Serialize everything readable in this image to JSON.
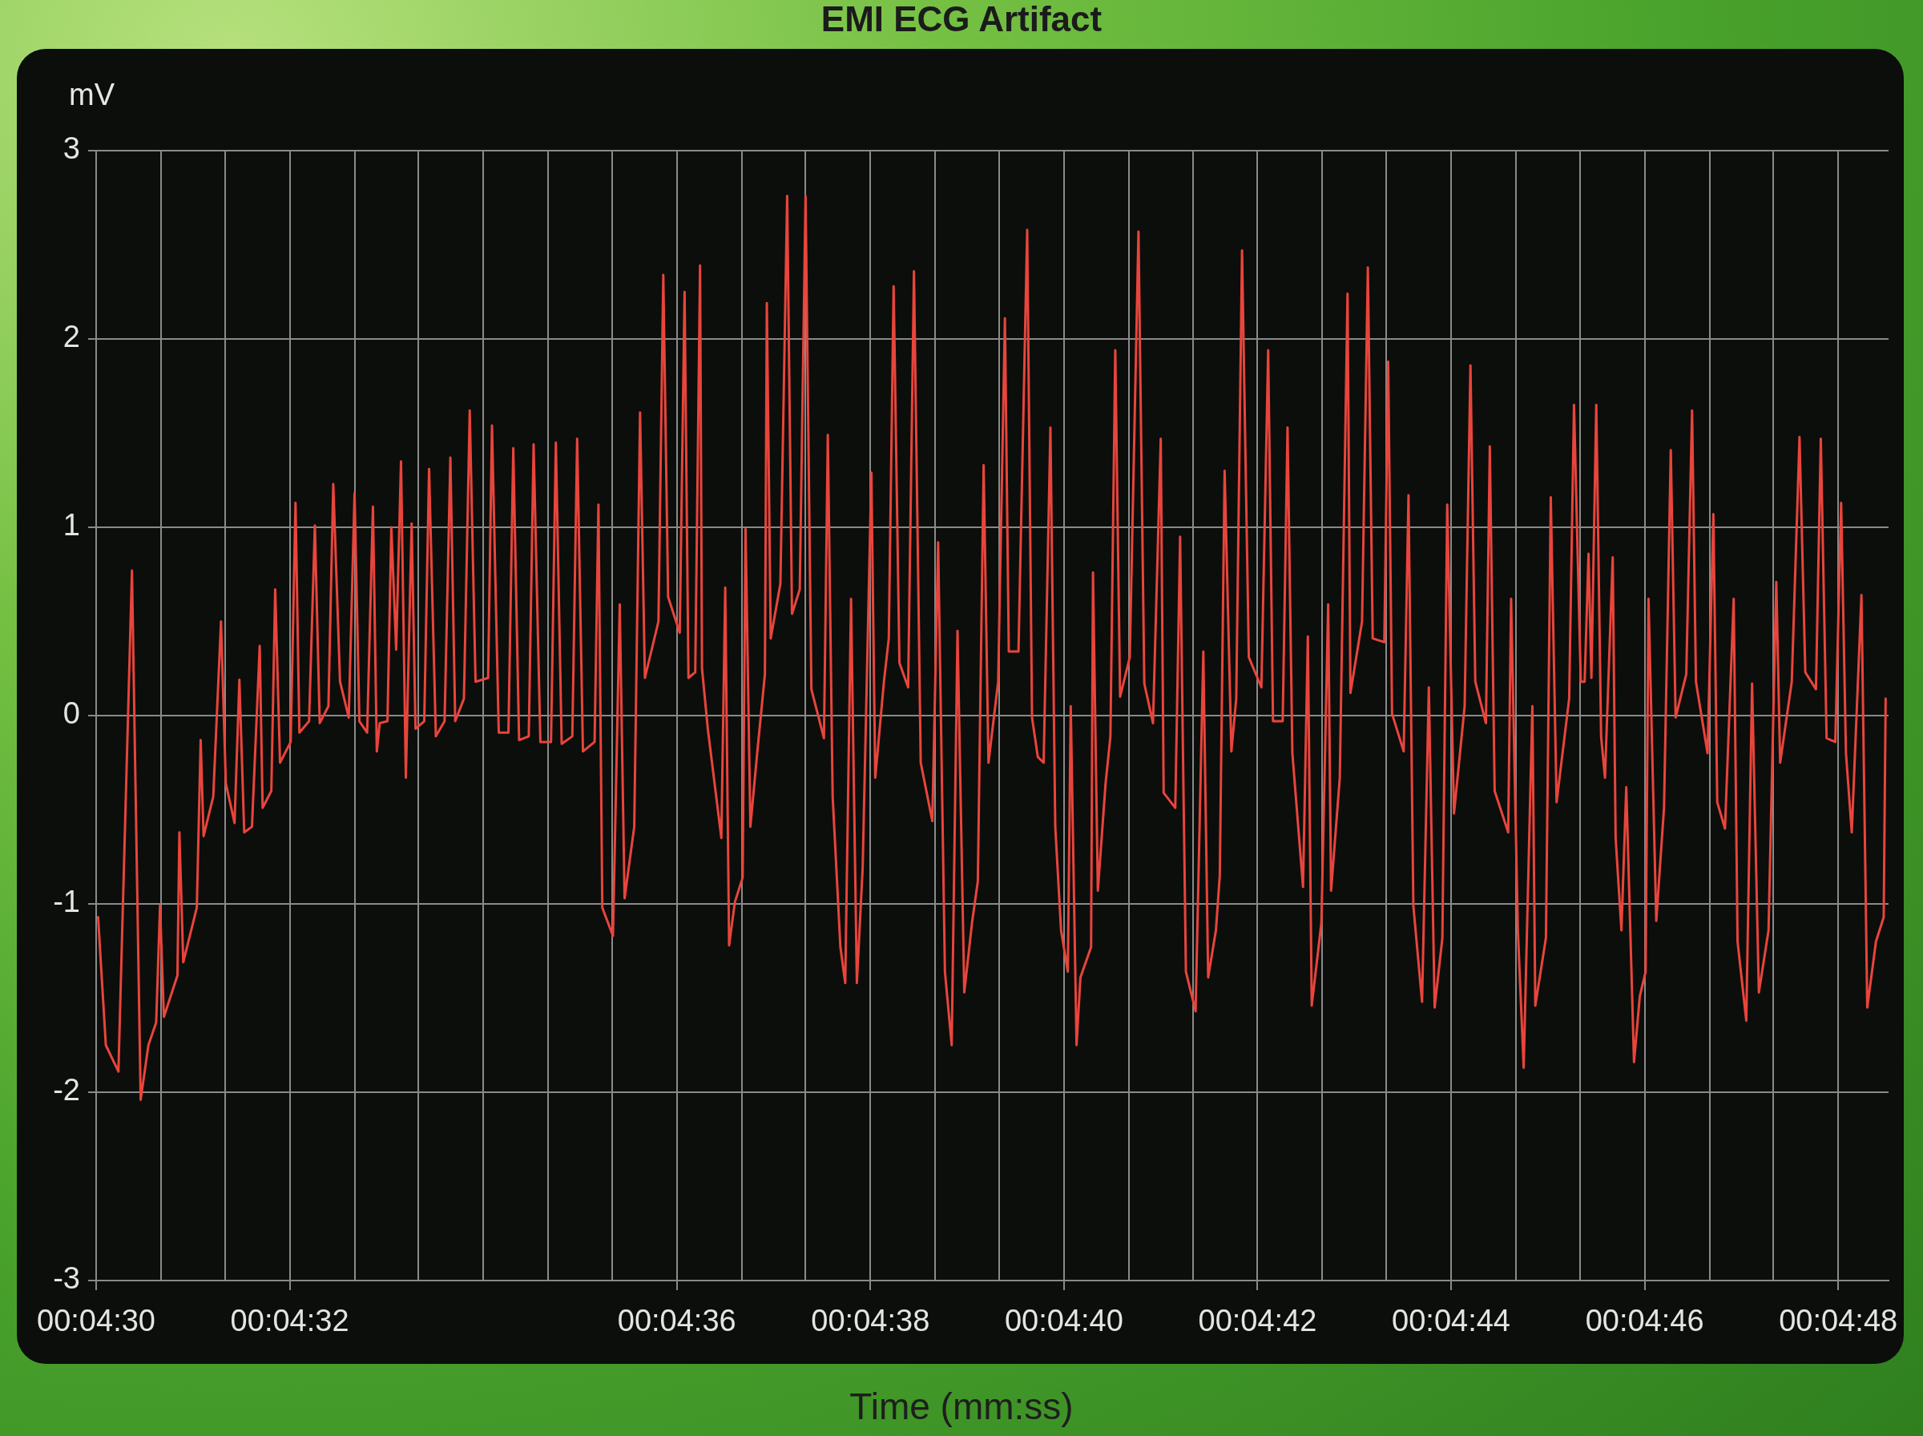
{
  "chart_data": {
    "type": "line",
    "title": "EMI ECG Artifact",
    "xlabel": "Time (mm:ss)",
    "ylabel": "mV",
    "color": "#e8453c",
    "line_style": "solid",
    "grid": true,
    "xlim": [
      270,
      288.52
    ],
    "ylim": [
      -3,
      3
    ],
    "yticks": [
      -3,
      -2,
      -1,
      0,
      1,
      2,
      3
    ],
    "xticks": [
      {
        "value": 270,
        "label": "00:04:30"
      },
      {
        "value": 270.67,
        "label": null
      },
      {
        "value": 271.33,
        "label": null
      },
      {
        "value": 272,
        "label": "00:04:32"
      },
      {
        "value": 272.67,
        "label": null
      },
      {
        "value": 273.33,
        "label": null
      },
      {
        "value": 274,
        "label": null
      },
      {
        "value": 274.67,
        "label": null
      },
      {
        "value": 275.33,
        "label": null
      },
      {
        "value": 276,
        "label": "00:04:36"
      },
      {
        "value": 276.67,
        "label": null
      },
      {
        "value": 277.33,
        "label": null
      },
      {
        "value": 278,
        "label": "00:04:38"
      },
      {
        "value": 278.67,
        "label": null
      },
      {
        "value": 279.33,
        "label": null
      },
      {
        "value": 280,
        "label": "00:04:40"
      },
      {
        "value": 280.67,
        "label": null
      },
      {
        "value": 281.33,
        "label": null
      },
      {
        "value": 282,
        "label": "00:04:42"
      },
      {
        "value": 282.67,
        "label": null
      },
      {
        "value": 283.33,
        "label": null
      },
      {
        "value": 284,
        "label": "00:04:44"
      },
      {
        "value": 284.67,
        "label": null
      },
      {
        "value": 285.33,
        "label": null
      },
      {
        "value": 286,
        "label": "00:04:46"
      },
      {
        "value": 286.67,
        "label": null
      },
      {
        "value": 287.33,
        "label": null
      },
      {
        "value": 288,
        "label": "00:04:48"
      }
    ],
    "x": [
      270.02,
      270.1,
      270.23,
      270.37,
      270.46,
      270.54,
      270.62,
      270.66,
      270.7,
      270.84,
      270.86,
      270.9,
      271.04,
      271.08,
      271.11,
      271.21,
      271.29,
      271.34,
      271.43,
      271.48,
      271.53,
      271.61,
      271.69,
      271.72,
      271.81,
      271.85,
      271.9,
      272.01,
      272.06,
      272.1,
      272.2,
      272.26,
      272.31,
      272.4,
      272.45,
      272.52,
      272.61,
      272.67,
      272.72,
      272.8,
      272.86,
      272.9,
      272.93,
      273.01,
      273.05,
      273.1,
      273.15,
      273.2,
      273.26,
      273.3,
      273.39,
      273.44,
      273.51,
      273.6,
      273.66,
      273.71,
      273.8,
      273.86,
      273.92,
      274.05,
      274.09,
      274.16,
      274.26,
      274.31,
      274.37,
      274.47,
      274.52,
      274.59,
      274.7,
      274.75,
      274.81,
      274.92,
      274.97,
      275.03,
      275.15,
      275.19,
      275.23,
      275.34,
      275.41,
      275.46,
      275.56,
      275.62,
      275.67,
      275.81,
      275.86,
      275.91,
      276.03,
      276.08,
      276.12,
      276.19,
      276.24,
      276.26,
      276.32,
      276.46,
      276.5,
      276.54,
      276.6,
      276.68,
      276.71,
      276.76,
      276.83,
      276.91,
      276.93,
      276.97,
      277.07,
      277.14,
      277.19,
      277.27,
      277.33,
      277.39,
      277.52,
      277.56,
      277.61,
      277.69,
      277.74,
      277.8,
      277.86,
      277.92,
      278.01,
      278.05,
      278.14,
      278.19,
      278.24,
      278.3,
      278.39,
      278.45,
      278.52,
      278.64,
      278.7,
      278.77,
      278.84,
      278.9,
      278.97,
      279.05,
      279.11,
      279.17,
      279.22,
      279.32,
      279.39,
      279.43,
      279.53,
      279.62,
      279.67,
      279.73,
      279.79,
      279.86,
      279.91,
      279.97,
      280.04,
      280.07,
      280.13,
      280.17,
      280.28,
      280.3,
      280.35,
      280.43,
      280.48,
      280.53,
      280.58,
      280.68,
      280.77,
      280.83,
      280.92,
      281.0,
      281.03,
      281.15,
      281.2,
      281.26,
      281.36,
      281.44,
      281.49,
      281.57,
      281.61,
      281.66,
      281.73,
      281.78,
      281.84,
      281.91,
      282.04,
      282.11,
      282.16,
      282.26,
      282.31,
      282.36,
      282.47,
      282.52,
      282.56,
      282.66,
      282.73,
      282.76,
      282.85,
      282.93,
      282.96,
      283.08,
      283.14,
      283.19,
      283.31,
      283.35,
      283.39,
      283.51,
      283.56,
      283.61,
      283.7,
      283.77,
      283.83,
      283.91,
      283.96,
      284.03,
      284.14,
      284.2,
      284.25,
      284.36,
      284.4,
      284.45,
      284.59,
      284.62,
      284.69,
      284.75,
      284.84,
      284.87,
      284.98,
      285.03,
      285.09,
      285.22,
      285.27,
      285.34,
      285.38,
      285.42,
      285.45,
      285.5,
      285.55,
      285.59,
      285.67,
      285.7,
      285.76,
      285.81,
      285.89,
      285.95,
      286.01,
      286.04,
      286.12,
      286.2,
      286.27,
      286.32,
      286.43,
      286.49,
      286.53,
      286.65,
      286.71,
      286.75,
      286.83,
      286.92,
      286.96,
      287.05,
      287.11,
      287.18,
      287.28,
      287.36,
      287.4,
      287.52,
      287.6,
      287.66,
      287.77,
      287.82,
      287.88,
      287.97,
      288.03,
      288.08,
      288.14,
      288.24,
      288.3,
      288.39,
      288.47,
      288.49
    ],
    "values": [
      -1.07,
      -1.75,
      -1.89,
      0.77,
      -2.04,
      -1.75,
      -1.63,
      -1.01,
      -1.6,
      -1.38,
      -0.62,
      -1.31,
      -1.02,
      -0.13,
      -0.64,
      -0.43,
      0.5,
      -0.36,
      -0.57,
      0.19,
      -0.62,
      -0.59,
      0.37,
      -0.49,
      -0.4,
      0.67,
      -0.25,
      -0.14,
      1.13,
      -0.09,
      -0.03,
      1.01,
      -0.04,
      0.05,
      1.23,
      0.18,
      -0.01,
      1.18,
      -0.03,
      -0.09,
      1.11,
      -0.19,
      -0.04,
      -0.03,
      1.0,
      0.35,
      1.35,
      -0.33,
      1.02,
      -0.07,
      -0.03,
      1.31,
      -0.11,
      -0.03,
      1.37,
      -0.03,
      0.09,
      1.62,
      0.18,
      0.2,
      1.54,
      -0.09,
      -0.09,
      1.42,
      -0.13,
      -0.11,
      1.44,
      -0.14,
      -0.14,
      1.45,
      -0.15,
      -0.11,
      1.47,
      -0.19,
      -0.14,
      1.12,
      -1.02,
      -1.17,
      0.59,
      -0.97,
      -0.59,
      1.61,
      0.2,
      0.5,
      2.34,
      0.63,
      0.44,
      2.25,
      0.2,
      0.23,
      2.39,
      0.25,
      -0.07,
      -0.65,
      0.68,
      -1.22,
      -0.99,
      -0.86,
      0.99,
      -0.59,
      -0.2,
      0.22,
      2.19,
      0.41,
      0.7,
      2.76,
      0.54,
      0.67,
      2.76,
      0.14,
      -0.12,
      1.49,
      -0.43,
      -1.23,
      -1.42,
      0.62,
      -1.42,
      -0.81,
      1.29,
      -0.33,
      0.18,
      0.41,
      2.28,
      0.28,
      0.15,
      2.36,
      -0.25,
      -0.56,
      0.92,
      -1.36,
      -1.75,
      0.45,
      -1.47,
      -1.1,
      -0.88,
      1.33,
      -0.25,
      0.18,
      2.11,
      0.34,
      0.34,
      2.58,
      -0.01,
      -0.22,
      -0.25,
      1.53,
      -0.59,
      -1.14,
      -1.36,
      0.05,
      -1.75,
      -1.39,
      -1.23,
      0.76,
      -0.93,
      -0.36,
      -0.11,
      1.94,
      0.1,
      0.31,
      2.57,
      0.17,
      -0.04,
      1.47,
      -0.41,
      -0.49,
      0.95,
      -1.36,
      -1.57,
      0.34,
      -1.39,
      -1.14,
      -0.85,
      1.3,
      -0.19,
      0.09,
      2.47,
      0.31,
      0.15,
      1.94,
      -0.03,
      -0.03,
      1.53,
      -0.2,
      -0.91,
      0.42,
      -1.54,
      -1.1,
      0.59,
      -0.93,
      -0.33,
      2.24,
      0.12,
      0.5,
      2.38,
      0.41,
      0.39,
      1.88,
      0.01,
      -0.19,
      1.17,
      -1.01,
      -1.52,
      0.15,
      -1.55,
      -1.18,
      1.12,
      -0.52,
      0.05,
      1.86,
      0.18,
      -0.04,
      1.43,
      -0.4,
      -0.62,
      0.62,
      -1.14,
      -1.87,
      0.05,
      -1.54,
      -1.18,
      1.16,
      -0.46,
      0.09,
      1.65,
      0.18,
      0.18,
      0.86,
      0.2,
      1.65,
      -0.11,
      -0.33,
      0.84,
      -0.65,
      -1.14,
      -0.38,
      -1.84,
      -1.49,
      -1.36,
      0.62,
      -1.09,
      -0.49,
      1.41,
      -0.01,
      0.22,
      1.62,
      0.18,
      -0.2,
      1.07,
      -0.46,
      -0.6,
      0.62,
      -1.2,
      -1.62,
      0.17,
      -1.47,
      -1.14,
      0.71,
      -0.25,
      0.18,
      1.48,
      0.23,
      0.14,
      1.47,
      -0.12,
      -0.14,
      1.13,
      -0.2,
      -0.62,
      0.64,
      -1.55,
      -1.2,
      -1.07,
      0.09
    ]
  }
}
